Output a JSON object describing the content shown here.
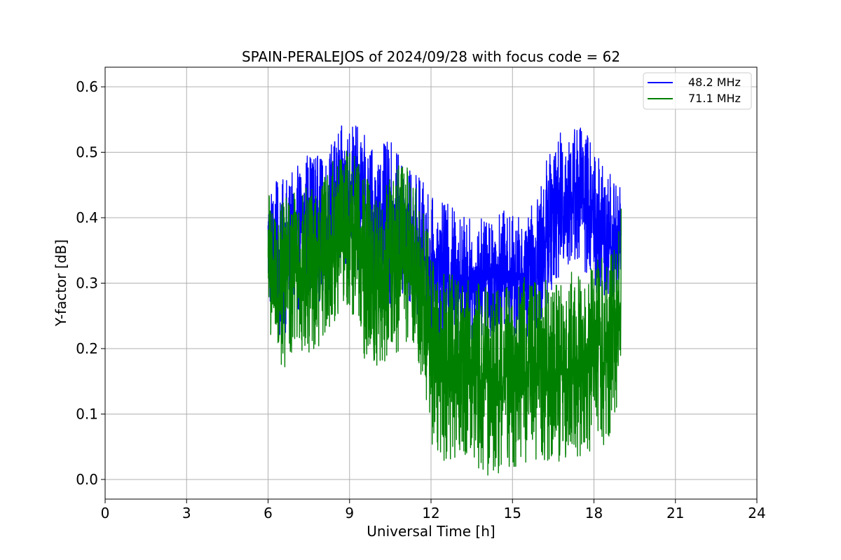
{
  "chart_data": {
    "type": "line",
    "title": "SPAIN-PERALEJOS of 2024/09/28 with focus code = 62",
    "xlabel": "Universal Time [h]",
    "ylabel": "Y-factor [dB]",
    "xlim": [
      0,
      24
    ],
    "ylim": [
      -0.03,
      0.63
    ],
    "xticks": [
      0,
      3,
      6,
      9,
      12,
      15,
      18,
      21,
      24
    ],
    "yticks": [
      0.0,
      0.1,
      0.2,
      0.3,
      0.4,
      0.5,
      0.6
    ],
    "xtick_labels": [
      "0",
      "3",
      "6",
      "9",
      "12",
      "15",
      "18",
      "21",
      "24"
    ],
    "ytick_labels": [
      "0.0",
      "0.1",
      "0.2",
      "0.3",
      "0.4",
      "0.5",
      "0.6"
    ],
    "grid": true,
    "legend_position": "top-right",
    "series": [
      {
        "name": "48.2 MHz",
        "color": "#0000ff",
        "x": [
          6.0,
          6.5,
          7.0,
          7.5,
          8.0,
          8.5,
          9.0,
          9.5,
          10.0,
          10.5,
          11.0,
          11.5,
          11.8,
          12.0,
          12.5,
          13.0,
          13.5,
          14.0,
          14.5,
          15.0,
          15.5,
          16.0,
          16.5,
          17.0,
          17.5,
          18.0,
          18.5,
          19.0
        ],
        "values": [
          0.36,
          0.33,
          0.36,
          0.4,
          0.38,
          0.42,
          0.44,
          0.42,
          0.38,
          0.39,
          0.37,
          0.36,
          0.34,
          0.32,
          0.31,
          0.31,
          0.3,
          0.31,
          0.32,
          0.31,
          0.3,
          0.34,
          0.41,
          0.43,
          0.44,
          0.4,
          0.36,
          0.38
        ],
        "spread": [
          0.06,
          0.08,
          0.07,
          0.07,
          0.07,
          0.07,
          0.07,
          0.07,
          0.08,
          0.08,
          0.07,
          0.07,
          0.07,
          0.07,
          0.07,
          0.07,
          0.06,
          0.06,
          0.06,
          0.06,
          0.06,
          0.07,
          0.07,
          0.07,
          0.07,
          0.07,
          0.07,
          0.06
        ]
      },
      {
        "name": "71.1 MHz",
        "color": "#008000",
        "x": [
          6.0,
          6.5,
          7.0,
          7.5,
          8.0,
          8.5,
          9.0,
          9.5,
          10.0,
          10.5,
          11.0,
          11.5,
          11.8,
          12.0,
          12.5,
          13.0,
          13.5,
          14.0,
          14.5,
          15.0,
          15.5,
          16.0,
          16.5,
          17.0,
          17.5,
          18.0,
          18.5,
          19.0
        ],
        "values": [
          0.33,
          0.3,
          0.31,
          0.32,
          0.33,
          0.37,
          0.39,
          0.33,
          0.28,
          0.33,
          0.34,
          0.33,
          0.27,
          0.2,
          0.17,
          0.17,
          0.16,
          0.15,
          0.15,
          0.16,
          0.17,
          0.17,
          0.16,
          0.17,
          0.18,
          0.19,
          0.2,
          0.27
        ],
        "spread": [
          0.07,
          0.09,
          0.08,
          0.08,
          0.08,
          0.08,
          0.08,
          0.09,
          0.09,
          0.09,
          0.09,
          0.09,
          0.09,
          0.09,
          0.09,
          0.09,
          0.09,
          0.09,
          0.09,
          0.09,
          0.09,
          0.09,
          0.09,
          0.09,
          0.09,
          0.09,
          0.09,
          0.09
        ]
      }
    ]
  }
}
